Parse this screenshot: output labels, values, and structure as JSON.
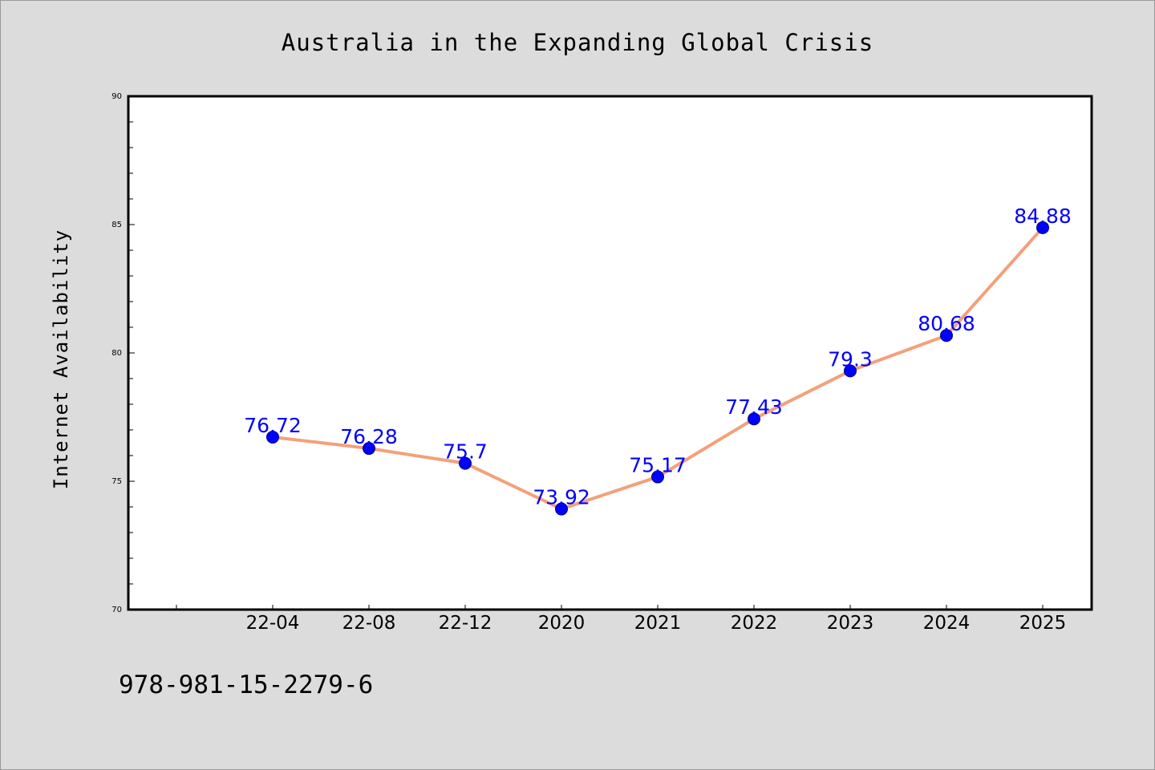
{
  "chart_data": {
    "type": "line",
    "title": "Australia in the Expanding Global Crisis",
    "ylabel": "Internet Availability",
    "xlabel": "",
    "categories": [
      "22-04",
      "22-08",
      "22-12",
      "2020",
      "2021",
      "2022",
      "2023",
      "2024",
      "2025"
    ],
    "series": [
      {
        "values": [
          76.72,
          76.28,
          75.7,
          73.92,
          75.17,
          77.43,
          79.3,
          80.68,
          84.88
        ],
        "labels": [
          "76.72",
          "76.28",
          "75.7",
          "73.92",
          "75.17",
          "77.43",
          "79.3",
          "80.68",
          "84.88"
        ],
        "line_color": "#f4a07a",
        "marker_color": "#0000ff"
      }
    ],
    "ylim": [
      70,
      90
    ],
    "yticks": [
      "70",
      "75",
      "80",
      "85",
      "90"
    ],
    "grid": false,
    "legend": "none"
  },
  "footer": {
    "isbn": "978-981-15-2279-6"
  },
  "colors": {
    "background": "#dcdcdc",
    "plot_background": "#ffffff",
    "data_label": "#0000ff"
  }
}
